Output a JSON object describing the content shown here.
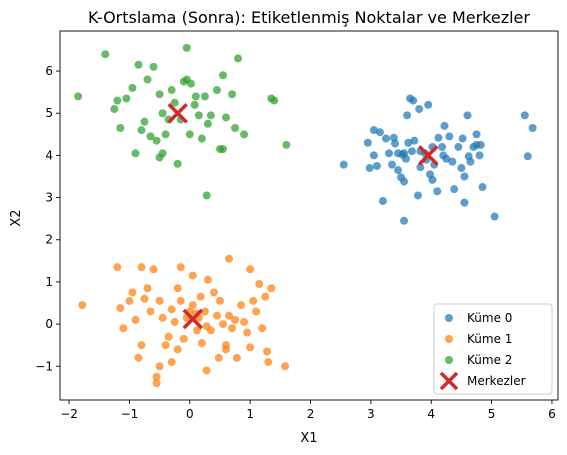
{
  "chart_data": {
    "type": "scatter",
    "title": "K-Ortslama (Sonra): Etiketlenmiş Noktalar ve Merkezler",
    "xlabel": "X1",
    "ylabel": "X2",
    "xlim": [
      -2.15,
      6.1
    ],
    "ylim": [
      -1.8,
      6.95
    ],
    "xticks": [
      -2,
      -1,
      0,
      1,
      2,
      3,
      4,
      5,
      6
    ],
    "yticks": [
      -1,
      0,
      1,
      2,
      3,
      4,
      5,
      6
    ],
    "grid": false,
    "legend_position": "lower right",
    "series": [
      {
        "name": "Küme 0",
        "color": "#1f77b4",
        "marker": "circle",
        "points": [
          [
            2.55,
            3.78
          ],
          [
            2.95,
            4.3
          ],
          [
            3.05,
            4.0
          ],
          [
            2.98,
            3.7
          ],
          [
            3.1,
            3.75
          ],
          [
            3.05,
            4.6
          ],
          [
            3.15,
            4.55
          ],
          [
            3.25,
            4.4
          ],
          [
            3.3,
            4.05
          ],
          [
            3.38,
            4.42
          ],
          [
            3.4,
            4.28
          ],
          [
            3.35,
            3.78
          ],
          [
            3.45,
            3.65
          ],
          [
            3.52,
            4.02
          ],
          [
            3.58,
            3.92
          ],
          [
            3.5,
            3.48
          ],
          [
            3.55,
            3.38
          ],
          [
            3.62,
            4.3
          ],
          [
            3.72,
            4.35
          ],
          [
            3.6,
            4.95
          ],
          [
            3.65,
            5.35
          ],
          [
            3.7,
            5.3
          ],
          [
            3.8,
            5.1
          ],
          [
            3.95,
            5.2
          ],
          [
            3.82,
            4.1
          ],
          [
            3.9,
            4.05
          ],
          [
            3.98,
            3.55
          ],
          [
            4.02,
            3.42
          ],
          [
            3.92,
            3.9
          ],
          [
            4.05,
            3.78
          ],
          [
            4.1,
            3.15
          ],
          [
            4.02,
            4.2
          ],
          [
            4.12,
            4.42
          ],
          [
            4.2,
            4.0
          ],
          [
            4.25,
            3.92
          ],
          [
            4.22,
            4.7
          ],
          [
            4.3,
            4.45
          ],
          [
            4.35,
            3.85
          ],
          [
            4.38,
            3.2
          ],
          [
            4.45,
            4.2
          ],
          [
            4.5,
            3.7
          ],
          [
            4.55,
            3.5
          ],
          [
            4.52,
            4.4
          ],
          [
            4.6,
            4.95
          ],
          [
            4.62,
            3.98
          ],
          [
            4.7,
            4.2
          ],
          [
            4.65,
            3.85
          ],
          [
            4.75,
            4.25
          ],
          [
            4.8,
            4.0
          ],
          [
            4.55,
            2.88
          ],
          [
            4.82,
            4.25
          ],
          [
            4.85,
            3.25
          ],
          [
            4.75,
            4.5
          ],
          [
            5.05,
            2.55
          ],
          [
            3.68,
            4.1
          ],
          [
            3.55,
            4.05
          ],
          [
            3.82,
            3.72
          ],
          [
            3.2,
            2.92
          ],
          [
            3.55,
            2.45
          ],
          [
            3.45,
            4.05
          ],
          [
            4.18,
            4.2
          ],
          [
            5.6,
            3.98
          ],
          [
            5.55,
            4.95
          ],
          [
            5.68,
            4.65
          ],
          [
            3.78,
            3.05
          ]
        ]
      },
      {
        "name": "Küme 1",
        "color": "#ff7f0e",
        "marker": "circle",
        "points": [
          [
            -1.78,
            0.45
          ],
          [
            -1.2,
            1.35
          ],
          [
            -1.15,
            0.38
          ],
          [
            -0.95,
            0.75
          ],
          [
            -1.0,
            0.55
          ],
          [
            -1.1,
            -0.1
          ],
          [
            -0.9,
            0.1
          ],
          [
            -0.8,
            1.35
          ],
          [
            -0.75,
            0.6
          ],
          [
            -0.7,
            0.85
          ],
          [
            -0.65,
            0.3
          ],
          [
            -0.6,
            1.3
          ],
          [
            -0.5,
            0.55
          ],
          [
            -0.45,
            0.15
          ],
          [
            -0.4,
            -0.5
          ],
          [
            -0.35,
            -0.3
          ],
          [
            -0.3,
            0.35
          ],
          [
            -0.25,
            0.05
          ],
          [
            -0.2,
            0.85
          ],
          [
            -0.15,
            0.55
          ],
          [
            -0.15,
            1.35
          ],
          [
            -0.1,
            -0.35
          ],
          [
            -0.05,
            0.15
          ],
          [
            0.0,
            0.3
          ],
          [
            0.05,
            0.45
          ],
          [
            0.05,
            1.15
          ],
          [
            0.1,
            0.25
          ],
          [
            0.12,
            -0.15
          ],
          [
            0.18,
            0.65
          ],
          [
            0.2,
            -0.45
          ],
          [
            0.25,
            0.3
          ],
          [
            0.28,
            -0.05
          ],
          [
            0.3,
            1.05
          ],
          [
            0.35,
            -0.15
          ],
          [
            0.4,
            0.75
          ],
          [
            0.45,
            0.2
          ],
          [
            0.48,
            -0.8
          ],
          [
            0.5,
            0.55
          ],
          [
            0.55,
            0.0
          ],
          [
            0.6,
            -0.5
          ],
          [
            0.65,
            0.2
          ],
          [
            0.65,
            1.55
          ],
          [
            0.7,
            -0.1
          ],
          [
            0.75,
            0.1
          ],
          [
            0.78,
            -0.8
          ],
          [
            0.85,
            0.45
          ],
          [
            0.9,
            0.05
          ],
          [
            0.95,
            -0.2
          ],
          [
            1.0,
            1.3
          ],
          [
            1.05,
            0.55
          ],
          [
            1.1,
            0.3
          ],
          [
            1.15,
            0.95
          ],
          [
            1.2,
            -0.1
          ],
          [
            1.25,
            0.65
          ],
          [
            1.28,
            -0.65
          ],
          [
            1.3,
            -0.9
          ],
          [
            1.35,
            0.85
          ],
          [
            1.58,
            -1.0
          ],
          [
            -0.55,
            -1.25
          ],
          [
            -0.55,
            -1.4
          ],
          [
            -0.5,
            -1.0
          ],
          [
            -0.2,
            -0.6
          ],
          [
            0.28,
            -1.1
          ],
          [
            -0.8,
            -0.5
          ],
          [
            -0.85,
            -0.8
          ],
          [
            -0.3,
            -0.9
          ],
          [
            0.6,
            -0.6
          ],
          [
            1.0,
            -0.55
          ],
          [
            0.15,
            0.15
          ]
        ]
      },
      {
        "name": "Küme 2",
        "color": "#2ca02c",
        "marker": "circle",
        "points": [
          [
            -1.85,
            5.4
          ],
          [
            -1.4,
            6.4
          ],
          [
            -1.25,
            5.1
          ],
          [
            -1.2,
            5.3
          ],
          [
            -1.15,
            4.65
          ],
          [
            -1.05,
            5.35
          ],
          [
            -0.95,
            5.6
          ],
          [
            -0.9,
            4.05
          ],
          [
            -0.85,
            6.15
          ],
          [
            -0.8,
            4.6
          ],
          [
            -0.75,
            4.8
          ],
          [
            -0.7,
            5.8
          ],
          [
            -0.65,
            4.45
          ],
          [
            -0.6,
            6.1
          ],
          [
            -0.55,
            4.35
          ],
          [
            -0.5,
            3.95
          ],
          [
            -0.45,
            4.05
          ],
          [
            -0.45,
            5.0
          ],
          [
            -0.4,
            4.5
          ],
          [
            -0.35,
            4.85
          ],
          [
            -0.3,
            5.55
          ],
          [
            -0.25,
            5.25
          ],
          [
            -0.2,
            3.8
          ],
          [
            -0.15,
            4.85
          ],
          [
            -0.1,
            5.75
          ],
          [
            -0.05,
            6.55
          ],
          [
            -0.05,
            5.8
          ],
          [
            0.0,
            4.5
          ],
          [
            0.02,
            5.7
          ],
          [
            0.08,
            5.2
          ],
          [
            0.1,
            5.4
          ],
          [
            0.15,
            4.95
          ],
          [
            0.2,
            4.4
          ],
          [
            0.25,
            5.4
          ],
          [
            0.28,
            3.05
          ],
          [
            0.3,
            4.75
          ],
          [
            0.35,
            4.95
          ],
          [
            0.45,
            5.55
          ],
          [
            0.5,
            4.15
          ],
          [
            0.55,
            4.15
          ],
          [
            0.55,
            5.9
          ],
          [
            0.6,
            4.9
          ],
          [
            0.7,
            5.45
          ],
          [
            0.75,
            4.65
          ],
          [
            0.8,
            6.3
          ],
          [
            0.9,
            4.5
          ],
          [
            1.35,
            5.35
          ],
          [
            1.6,
            4.25
          ],
          [
            1.4,
            5.3
          ],
          [
            -0.5,
            5.45
          ]
        ]
      },
      {
        "name": "Merkezler",
        "color": "#d62728",
        "marker": "x",
        "points": [
          [
            3.95,
            4.0
          ],
          [
            0.05,
            0.12
          ],
          [
            -0.2,
            5.0
          ]
        ]
      }
    ]
  }
}
